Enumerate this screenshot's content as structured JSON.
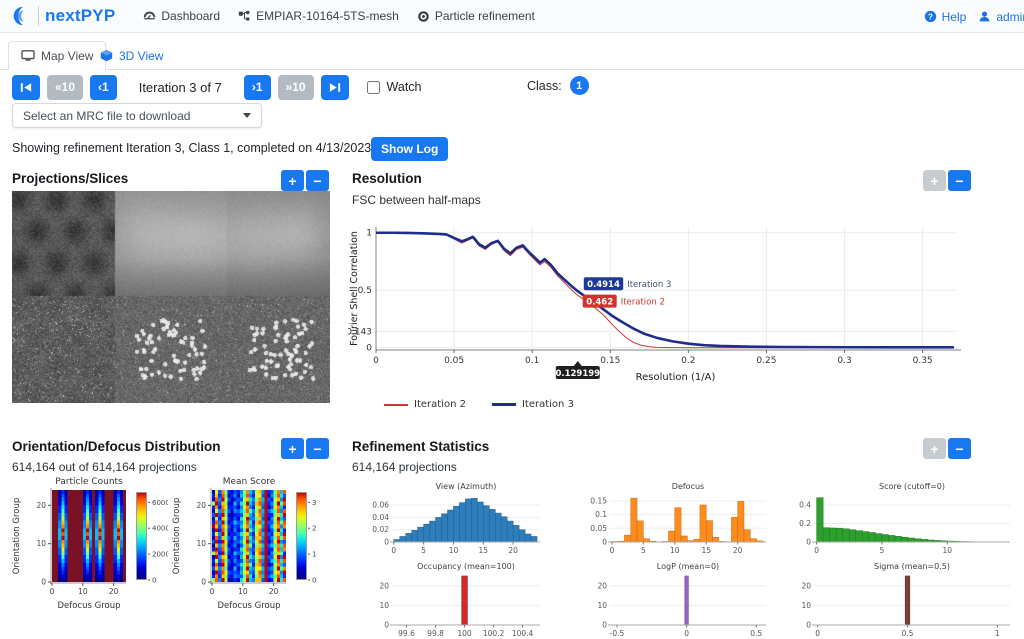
{
  "navbar": {
    "brand": "nextPYP",
    "items": [
      {
        "label": "Dashboard"
      },
      {
        "label": "EMPIAR-10164-5TS-mesh"
      },
      {
        "label": "Particle refinement"
      }
    ],
    "help": "Help",
    "user": "admin"
  },
  "tabs": [
    {
      "label": "Map View",
      "active": true
    },
    {
      "label": "3D View",
      "active": false
    }
  ],
  "controls": {
    "back10_label": "«10",
    "back1_label": "‹1",
    "iteration_label": "Iteration 3 of 7",
    "fwd1_label": "›1",
    "fwd10_label": "»10",
    "watch_label": "Watch",
    "class_label": "Class:",
    "class_value": "1"
  },
  "download": {
    "placeholder": "Select an MRC file to download"
  },
  "status": {
    "text": "Showing refinement Iteration 3, Class 1, completed on 4/13/2023, 7:09:13 PM",
    "show_log": "Show Log"
  },
  "zoom_controls": {
    "plus": "+",
    "minus": "−"
  },
  "panels": {
    "projections": {
      "title": "Projections/Slices",
      "plus_enabled": true,
      "minus_enabled": true
    },
    "resolution": {
      "title": "Resolution",
      "subtitle": "FSC between half-maps",
      "plus_enabled": false,
      "minus_enabled": true
    },
    "orientation": {
      "title": "Orientation/Defocus Distribution",
      "subtitle": "614,164 out of 614,164 projections",
      "plus_enabled": true,
      "minus_enabled": true
    },
    "statistics": {
      "title": "Refinement Statistics",
      "subtitle": "614,164 projections",
      "plus_enabled": false,
      "minus_enabled": true
    }
  },
  "chart_data": [
    {
      "id": "fsc",
      "type": "line",
      "title": "FSC between half-maps",
      "xlabel": "Resolution (1/A)",
      "ylabel": "Fourier Shell Correlation",
      "xlim": [
        0,
        0.372
      ],
      "ylim": [
        -0.02,
        1.05
      ],
      "grid": true,
      "legend_position": "bottom",
      "xticks": [
        0,
        0.05,
        0.1,
        0.15,
        0.2,
        0.25,
        0.3,
        0.35
      ],
      "xtick_labels": [
        "0",
        "0.05",
        "0.1",
        "0.15",
        "0.2",
        "0.25",
        "0.3",
        "0.35"
      ],
      "yticks": [
        1,
        0.5,
        0.143,
        0
      ],
      "ytick_labels": [
        "1",
        "0.5",
        "0.143",
        "0"
      ],
      "series": [
        {
          "name": "Iteration 2",
          "color": "#cf342c",
          "width": 1,
          "x": [
            0,
            0.01,
            0.02,
            0.03,
            0.04,
            0.045,
            0.05,
            0.055,
            0.058,
            0.062,
            0.066,
            0.07,
            0.074,
            0.078,
            0.082,
            0.086,
            0.09,
            0.094,
            0.098,
            0.102,
            0.105,
            0.108,
            0.112,
            0.116,
            0.12,
            0.124,
            0.1285,
            0.134,
            0.14,
            0.146,
            0.15,
            0.155,
            0.16,
            0.165,
            0.17,
            0.175,
            0.18,
            0.19,
            0.2,
            0.22,
            0.25,
            0.3,
            0.37
          ],
          "y": [
            1,
            1,
            0.997,
            0.993,
            0.987,
            0.98,
            0.945,
            0.91,
            0.93,
            0.955,
            0.885,
            0.855,
            0.9,
            0.92,
            0.845,
            0.8,
            0.855,
            0.875,
            0.815,
            0.76,
            0.72,
            0.75,
            0.7,
            0.63,
            0.575,
            0.52,
            0.462,
            0.41,
            0.35,
            0.28,
            0.22,
            0.15,
            0.09,
            0.045,
            0.02,
            0.008,
            0.003,
            0.001,
            0,
            0,
            0,
            0,
            0
          ]
        },
        {
          "name": "Iteration 3",
          "color": "#1d2d8a",
          "width": 2.6,
          "x": [
            0,
            0.01,
            0.02,
            0.03,
            0.04,
            0.045,
            0.05,
            0.055,
            0.058,
            0.062,
            0.066,
            0.07,
            0.074,
            0.078,
            0.082,
            0.086,
            0.09,
            0.094,
            0.098,
            0.102,
            0.105,
            0.108,
            0.112,
            0.116,
            0.12,
            0.124,
            0.1292,
            0.134,
            0.14,
            0.146,
            0.152,
            0.158,
            0.165,
            0.172,
            0.18,
            0.19,
            0.2,
            0.21,
            0.22,
            0.24,
            0.26,
            0.3,
            0.34,
            0.37
          ],
          "y": [
            1,
            1,
            0.998,
            0.995,
            0.99,
            0.985,
            0.955,
            0.925,
            0.94,
            0.965,
            0.9,
            0.87,
            0.91,
            0.93,
            0.86,
            0.82,
            0.87,
            0.89,
            0.83,
            0.78,
            0.74,
            0.77,
            0.72,
            0.65,
            0.6,
            0.55,
            0.4914,
            0.445,
            0.39,
            0.33,
            0.27,
            0.22,
            0.165,
            0.12,
            0.085,
            0.055,
            0.035,
            0.022,
            0.015,
            0.009,
            0.006,
            0.004,
            0.003,
            0.003
          ]
        }
      ],
      "annotations": [
        {
          "x": 0.1292,
          "y": 0.4914,
          "label": "0.4914",
          "name": "Iteration 3",
          "bg": "#1e3a96",
          "name_color": "#3d4f73",
          "box_dy": -14
        },
        {
          "x": 0.1285,
          "y": 0.462,
          "label": "0.462",
          "name": "Iteration 2",
          "bg": "#d0342c",
          "name_color": "#d0342c",
          "box_dy": 0
        }
      ],
      "tooltip": {
        "x": 0.1292,
        "label": "0.129199"
      }
    },
    {
      "id": "particle_counts",
      "type": "heatmap",
      "title": "Particle Counts",
      "xlabel": "Defocus Group",
      "ylabel": "Orientation Group",
      "extent": [
        24,
        24
      ],
      "xticks": [
        0,
        10,
        20
      ],
      "yticks": [
        0,
        10,
        20
      ],
      "bg": "#7a1125",
      "palette": [
        "#00007f",
        "#0000a8",
        "#0000d1",
        "#0023ff",
        "#0057ff",
        "#008bff",
        "#00bfff",
        "#17e8e0",
        "#4dffa9",
        "#84ff73",
        "#baff3d",
        "#f1f107",
        "#ffc000",
        "#ff8800",
        "#ff4f00",
        "#c40000"
      ],
      "rows": [
        "..131.....131.131...131.",
        "..141.....141.141...141.",
        "..252.....252.252...252.",
        "..262.....262.262...262.",
        "..373.....373.373...373.",
        "..383.....383.383...383.",
        "..494.....494.494...494.",
        "..4a4.....4a4.4a4...4a4.",
        "..5c5.....5c5.5c5...5c5.",
        "..5d5.....5d5.5d5...5d5.",
        "..6f6.....6f6.6f6...6f6.",
        "..6e6.....6e6.6e6...6e6.",
        "..6f6.....6f6.6f6...6f6.",
        "..5d5.....5d5.5d5...5d5.",
        "..5c5.....5c5.5c5...5c5.",
        "..4b4.....4b4.4b4...4b4.",
        "..494.....494.494...494.",
        "..383.....383.383...383.",
        "..363.....363.363...363.",
        "..252.....252.252...252.",
        "..242.....242.242...242.",
        "..131.....131.131...131.",
        "..121.....121.121...121.",
        "..010.....010.010...010."
      ],
      "colorbar": {
        "ticks": [
          0,
          2000,
          4000,
          6000
        ],
        "tick_labels": [
          "0",
          "2000",
          "4000",
          "6000"
        ],
        "max": 6800
      }
    },
    {
      "id": "mean_score",
      "type": "heatmap",
      "title": "Mean Score",
      "xlabel": "Defocus Group",
      "ylabel": "Orientation Group",
      "extent": [
        24,
        24
      ],
      "xticks": [
        0,
        10,
        20
      ],
      "yticks": [
        0,
        10,
        20
      ],
      "bg": "#00007f",
      "palette": [
        "#00007f",
        "#0000a8",
        "#0000d1",
        "#0023ff",
        "#0057ff",
        "#008bff",
        "#00bfff",
        "#17e8e0",
        "#4dffa9",
        "#84ff73",
        "#baff3d",
        "#f1f107",
        "#ffc000",
        "#ff8800",
        "#ff4f00",
        "#c40000"
      ],
      "rows": [
        "2b4d9324359d64ac5f349d6e",
        "3c3e8235268e53bb4f258e74",
        "2e5fa41344ac759d6f43ac5f",
        "9f4c9226379f64ce5f359f8e",
        "3d3db33425bd53ac4f24bd63",
        "2a5e8425468e859e6f468e5e",
        "4f4f9213349c64bd5f339c7f",
        "293ca32427af558c4f25af64",
        "3e5f8236459e73ce6f449e8e",
        "fc4db42436bd64ab5f36bd5d",
        "2f3e9315248f859d4f248f73",
        "3b5fa23347ac53be6f43ac6f",
        "2e4c8426359e74cc5f359e8e",
        "4f3fb32446bf65ae4f24bf54",
        "2c5d9235248d839c6f468d7e",
        "3f4ea41337ae54cd5f33ae6d",
        "9d3f8326459c63be4f259c83",
        "2f5cb23426bf75ac6f44bf5f",
        "3a4e9425348e549e5f368e7e",
        "2e3fa31347ad83cd4f23ad64",
        "4c5d8226259f65bb6f459f8d",
        "2f4eb43436bc54ae5f34bc5f",
        "3d3c9325448e739d6f468e63",
        "9e5fa21327af65cc4f23af7e"
      ],
      "colorbar": {
        "ticks": [
          0,
          1,
          2,
          3
        ],
        "tick_labels": [
          "0",
          "1",
          "2",
          "3"
        ],
        "max": 3.4
      }
    },
    {
      "id": "view_azimuth",
      "type": "histogram",
      "title": "View (Azimuth)",
      "color": "#2f7ebc",
      "edge": "#1d5d94",
      "xlim": [
        -0.3,
        24.5
      ],
      "ylim": [
        0,
        0.078
      ],
      "bin_start": 0,
      "bin_width": 1,
      "values": [
        0.004,
        0.009,
        0.014,
        0.019,
        0.024,
        0.029,
        0.034,
        0.04,
        0.046,
        0.052,
        0.058,
        0.064,
        0.07,
        0.071,
        0.065,
        0.059,
        0.053,
        0.047,
        0.041,
        0.034,
        0.027,
        0.02,
        0.013,
        0.009
      ],
      "xticks": [
        0,
        5,
        10,
        15,
        20
      ],
      "xtick_labels": [
        "0",
        "5",
        "10",
        "15",
        "20"
      ],
      "yticks": [
        0,
        0.02,
        0.04,
        0.06
      ],
      "ytick_labels": [
        "0",
        "0.02",
        "0.04",
        "0.06"
      ]
    },
    {
      "id": "defocus",
      "type": "histogram",
      "title": "Defocus",
      "color": "#fd8b1e",
      "edge": "#c96a0a",
      "xlim": [
        -0.3,
        24.5
      ],
      "ylim": [
        0,
        0.175
      ],
      "bin_start": 0,
      "bin_width": 1,
      "values": [
        0.002,
        0.003,
        0.025,
        0.16,
        0.077,
        0.012,
        0.003,
        0.001,
        0.002,
        0.04,
        0.125,
        0.022,
        0.005,
        0.01,
        0.135,
        0.078,
        0.017,
        0.002,
        0.001,
        0.09,
        0.148,
        0.045,
        0.012,
        0.004
      ],
      "xticks": [
        0,
        5,
        10,
        15,
        20
      ],
      "xtick_labels": [
        "0",
        "5",
        "10",
        "15",
        "20"
      ],
      "yticks": [
        0,
        0.05,
        0.1,
        0.15
      ],
      "ytick_labels": [
        "0",
        "0.05",
        "0.1",
        "0.15"
      ]
    },
    {
      "id": "score",
      "type": "histogram",
      "title": "Score (cutoff=0)",
      "color": "#2ca02c",
      "edge": "#1e7a1e",
      "xlim": [
        -0.2,
        14.8
      ],
      "ylim": [
        0,
        0.52
      ],
      "bin_start": 0,
      "bin_width": 0.5,
      "values": [
        0.48,
        0.155,
        0.152,
        0.15,
        0.143,
        0.133,
        0.123,
        0.113,
        0.103,
        0.091,
        0.081,
        0.071,
        0.061,
        0.051,
        0.043,
        0.035,
        0.028,
        0.022,
        0.017,
        0.013,
        0.01,
        0.007,
        0.005,
        0.004,
        0.003,
        0.002,
        0.001,
        0.001
      ],
      "xticks": [
        0,
        5,
        10
      ],
      "xtick_labels": [
        "0",
        "5",
        "10"
      ],
      "yticks": [
        0,
        0.2,
        0.4
      ],
      "ytick_labels": [
        "0",
        "0.2",
        "0.4"
      ]
    },
    {
      "id": "occupancy",
      "type": "histogram",
      "title": "Occupancy (mean=100)",
      "color": "#d62728",
      "edge": "#8b1a1a",
      "xlim": [
        99.5,
        100.52
      ],
      "ylim": [
        0,
        26
      ],
      "bin_start": 99.98,
      "bin_width": 0.04,
      "values": [
        25
      ],
      "xticks": [
        99.6,
        99.8,
        100,
        100.2,
        100.4
      ],
      "xtick_labels": [
        "99.6",
        "99.8",
        "100",
        "100.2",
        "100.4"
      ],
      "yticks": [
        0,
        10,
        20
      ],
      "ytick_labels": [
        "0",
        "10",
        "20"
      ]
    },
    {
      "id": "logp",
      "type": "histogram",
      "title": "LogP (mean=0)",
      "color": "#9467bd",
      "edge": "#5e3d85",
      "xlim": [
        -0.55,
        0.57
      ],
      "ylim": [
        0,
        26
      ],
      "bin_start": -0.013,
      "bin_width": 0.026,
      "values": [
        25
      ],
      "xticks": [
        -0.5,
        0,
        0.5
      ],
      "xtick_labels": [
        "-0.5",
        "0",
        "0.5"
      ],
      "yticks": [
        0,
        10,
        20
      ],
      "ytick_labels": [
        "0",
        "10",
        "20"
      ]
    },
    {
      "id": "sigma",
      "type": "histogram",
      "title": "Sigma (mean=0.5)",
      "color": "#7b4136",
      "edge": "#4f241d",
      "xlim": [
        -0.02,
        1.07
      ],
      "ylim": [
        0,
        26
      ],
      "bin_start": 0.487,
      "bin_width": 0.026,
      "values": [
        25
      ],
      "xticks": [
        0,
        0.5,
        1
      ],
      "xtick_labels": [
        "0",
        "0.5",
        "1"
      ],
      "yticks": [
        0,
        10,
        20
      ],
      "ytick_labels": [
        "0",
        "10",
        "20"
      ]
    }
  ]
}
